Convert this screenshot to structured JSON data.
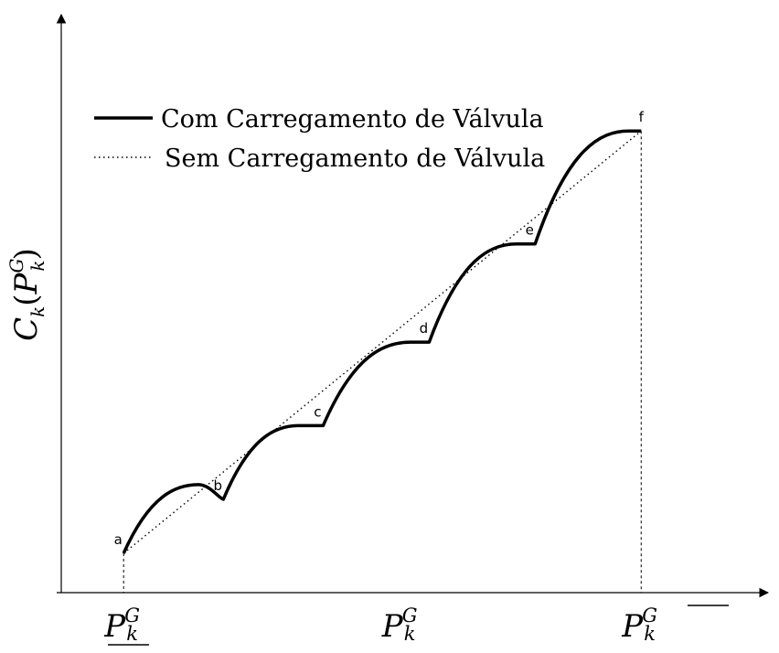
{
  "chart_data": {
    "type": "line",
    "ylabel": {
      "main": "C",
      "sub": "k",
      "paren_open": "(",
      "var": "P",
      "var_sub": "k",
      "var_sup": "G",
      "paren_close": ")"
    },
    "xtick_labels": [
      {
        "main": "P",
        "sub": "k",
        "sup": "G",
        "decoration": "underline"
      },
      {
        "main": "P",
        "sub": "k",
        "sup": "G",
        "decoration": "none"
      },
      {
        "main": "P",
        "sub": "k",
        "sup": "G",
        "decoration": "overline"
      }
    ],
    "xlim": [
      0,
      10
    ],
    "ylim": [
      0,
      10
    ],
    "legend": {
      "placement": "top-left"
    },
    "series": [
      {
        "name": "Com Carregamento de Válvula",
        "style": "solid",
        "color": "#000000",
        "points": [
          {
            "label": "a",
            "x": 1.0,
            "y": 0.8
          },
          {
            "label": "b",
            "x": 2.6,
            "y": 1.9
          },
          {
            "label": "c",
            "x": 4.2,
            "y": 3.4
          },
          {
            "label": "d",
            "x": 5.9,
            "y": 5.1
          },
          {
            "label": "e",
            "x": 7.6,
            "y": 7.1
          },
          {
            "label": "f",
            "x": 9.3,
            "y": 9.4
          }
        ],
        "arc_peaks": [
          {
            "x": 2.2,
            "y": 2.2
          },
          {
            "x": 3.8,
            "y": 3.4
          },
          {
            "x": 5.6,
            "y": 5.1
          },
          {
            "x": 7.3,
            "y": 7.1
          },
          {
            "x": 9.1,
            "y": 9.4
          }
        ]
      },
      {
        "name": "Sem Carregamento de Válvula",
        "style": "dotted",
        "color": "#000000",
        "points": [
          {
            "x": 1.0,
            "y": 0.8
          },
          {
            "x": 9.3,
            "y": 9.4
          }
        ]
      }
    ]
  }
}
